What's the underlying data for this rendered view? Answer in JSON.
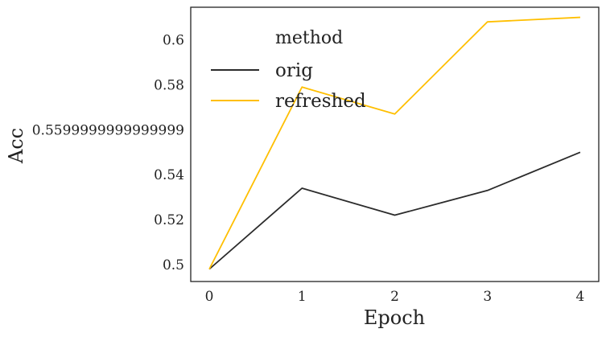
{
  "chart_data": {
    "type": "line",
    "title": "",
    "xlabel": "Epoch",
    "ylabel": "Acc",
    "x": [
      0,
      1,
      2,
      3,
      4
    ],
    "xticks": [
      "0",
      "1",
      "2",
      "3",
      "4"
    ],
    "yticks": [
      {
        "value": 0.5,
        "label": "0.5"
      },
      {
        "value": 0.52,
        "label": "0.52"
      },
      {
        "value": 0.54,
        "label": "0.54"
      },
      {
        "value": 0.56,
        "label": "0.5599999999999999"
      },
      {
        "value": 0.58,
        "label": "0.58"
      },
      {
        "value": 0.6,
        "label": "0.6"
      }
    ],
    "xlim": [
      -0.2,
      4.2
    ],
    "ylim": [
      0.4925,
      0.6145
    ],
    "grid": false,
    "legend": {
      "title": "method",
      "placement": "top-left"
    },
    "series": [
      {
        "name": "orig",
        "color": "#2b2b2b",
        "values": [
          0.498,
          0.534,
          0.522,
          0.533,
          0.55
        ]
      },
      {
        "name": "refreshed",
        "color": "#ffbf00",
        "values": [
          0.498,
          0.579,
          0.567,
          0.608,
          0.61
        ]
      }
    ]
  }
}
